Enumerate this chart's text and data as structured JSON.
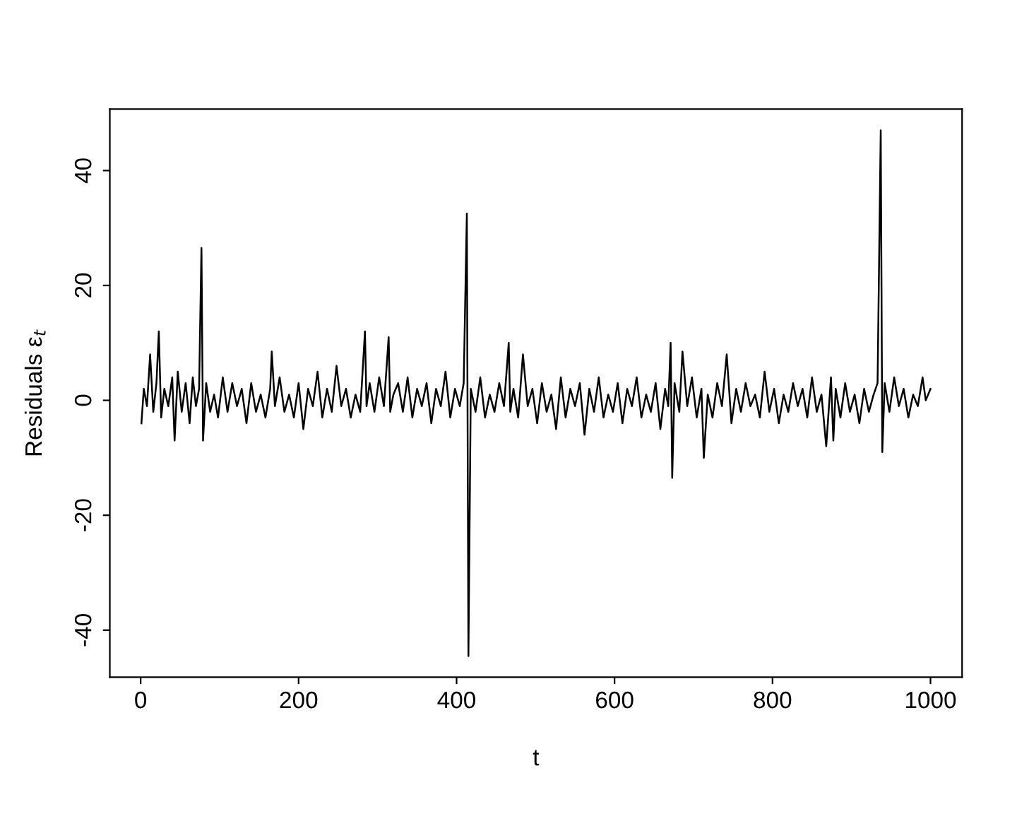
{
  "chart_data": {
    "type": "line",
    "xlabel": "t",
    "ylabel": "Residuals ε$_{t}$",
    "series": [
      {
        "color": "#000000",
        "x": [
          1,
          4,
          8,
          12,
          16,
          20,
          23,
          26,
          30,
          35,
          40,
          43,
          47,
          52,
          57,
          62,
          66,
          70,
          74,
          77,
          79,
          83,
          88,
          93,
          98,
          104,
          110,
          116,
          122,
          128,
          134,
          140,
          146,
          152,
          158,
          164,
          166,
          170,
          176,
          182,
          188,
          194,
          200,
          206,
          212,
          218,
          224,
          230,
          236,
          242,
          248,
          254,
          260,
          266,
          272,
          278,
          284,
          286,
          290,
          296,
          302,
          308,
          314,
          316,
          320,
          326,
          332,
          338,
          344,
          350,
          356,
          362,
          368,
          374,
          380,
          386,
          392,
          398,
          404,
          409,
          413,
          415,
          418,
          424,
          430,
          436,
          442,
          448,
          454,
          460,
          466,
          468,
          472,
          478,
          484,
          490,
          496,
          502,
          508,
          514,
          520,
          526,
          532,
          538,
          544,
          550,
          556,
          562,
          568,
          574,
          580,
          586,
          592,
          598,
          604,
          610,
          616,
          622,
          628,
          634,
          640,
          646,
          652,
          658,
          664,
          668,
          671,
          673,
          676,
          682,
          686,
          692,
          698,
          704,
          710,
          713,
          718,
          724,
          730,
          736,
          742,
          748,
          754,
          760,
          766,
          772,
          778,
          784,
          790,
          796,
          802,
          808,
          814,
          820,
          826,
          832,
          838,
          844,
          850,
          856,
          862,
          868,
          874,
          877,
          880,
          886,
          892,
          898,
          904,
          910,
          916,
          922,
          928,
          933,
          937,
          939,
          942,
          948,
          954,
          960,
          966,
          972,
          978,
          984,
          990,
          994,
          997,
          1000
        ],
        "values": [
          -4,
          2,
          -1,
          8,
          -2,
          3,
          12,
          -3,
          2,
          -1,
          4,
          -7,
          5,
          -2,
          3,
          -4,
          4,
          -1,
          2,
          26.5,
          -7,
          3,
          -2,
          1,
          -3,
          4,
          -2,
          3,
          -1,
          2,
          -4,
          3,
          -2,
          1,
          -3,
          2,
          8.5,
          -1,
          4,
          -2,
          1,
          -3,
          3,
          -5,
          2,
          -1,
          5,
          -3,
          2,
          -2,
          6,
          -1,
          2,
          -3,
          1,
          -2,
          12,
          -1,
          3,
          -2,
          4,
          -1,
          11,
          -2,
          1,
          3,
          -2,
          4,
          -3,
          2,
          -1,
          3,
          -4,
          2,
          -1,
          5,
          -3,
          2,
          -1,
          3,
          32.5,
          -44.5,
          2,
          -2,
          4,
          -3,
          1,
          -2,
          3,
          -1,
          10,
          -2,
          2,
          -3,
          8,
          -1,
          2,
          -4,
          3,
          -2,
          1,
          -5,
          4,
          -3,
          2,
          -1,
          3,
          -6,
          2,
          -2,
          4,
          -3,
          1,
          -2,
          3,
          -4,
          2,
          -1,
          4,
          -3,
          1,
          -2,
          3,
          -5,
          2,
          -1,
          10,
          -13.5,
          3,
          -2,
          8.5,
          -1,
          4,
          -3,
          2,
          -10,
          1,
          -3,
          3,
          -1,
          8,
          -4,
          2,
          -2,
          3,
          -1,
          1,
          -3,
          5,
          -2,
          2,
          -4,
          1,
          -2,
          3,
          -1,
          2,
          -3,
          4,
          -2,
          1,
          -8,
          4,
          -7,
          2,
          -3,
          3,
          -2,
          1,
          -4,
          2,
          -2,
          1,
          3,
          47,
          -9,
          3,
          -2,
          4,
          -1,
          2,
          -3,
          1,
          -1,
          4,
          0,
          1,
          2
        ]
      }
    ],
    "xlim": [
      -39,
      1040
    ],
    "ylim": [
      -48.2,
      50.7
    ],
    "xticks": [
      0,
      200,
      400,
      600,
      800,
      1000
    ],
    "yticks": [
      -40,
      -20,
      0,
      20,
      40
    ],
    "grid": false,
    "legend": false
  }
}
